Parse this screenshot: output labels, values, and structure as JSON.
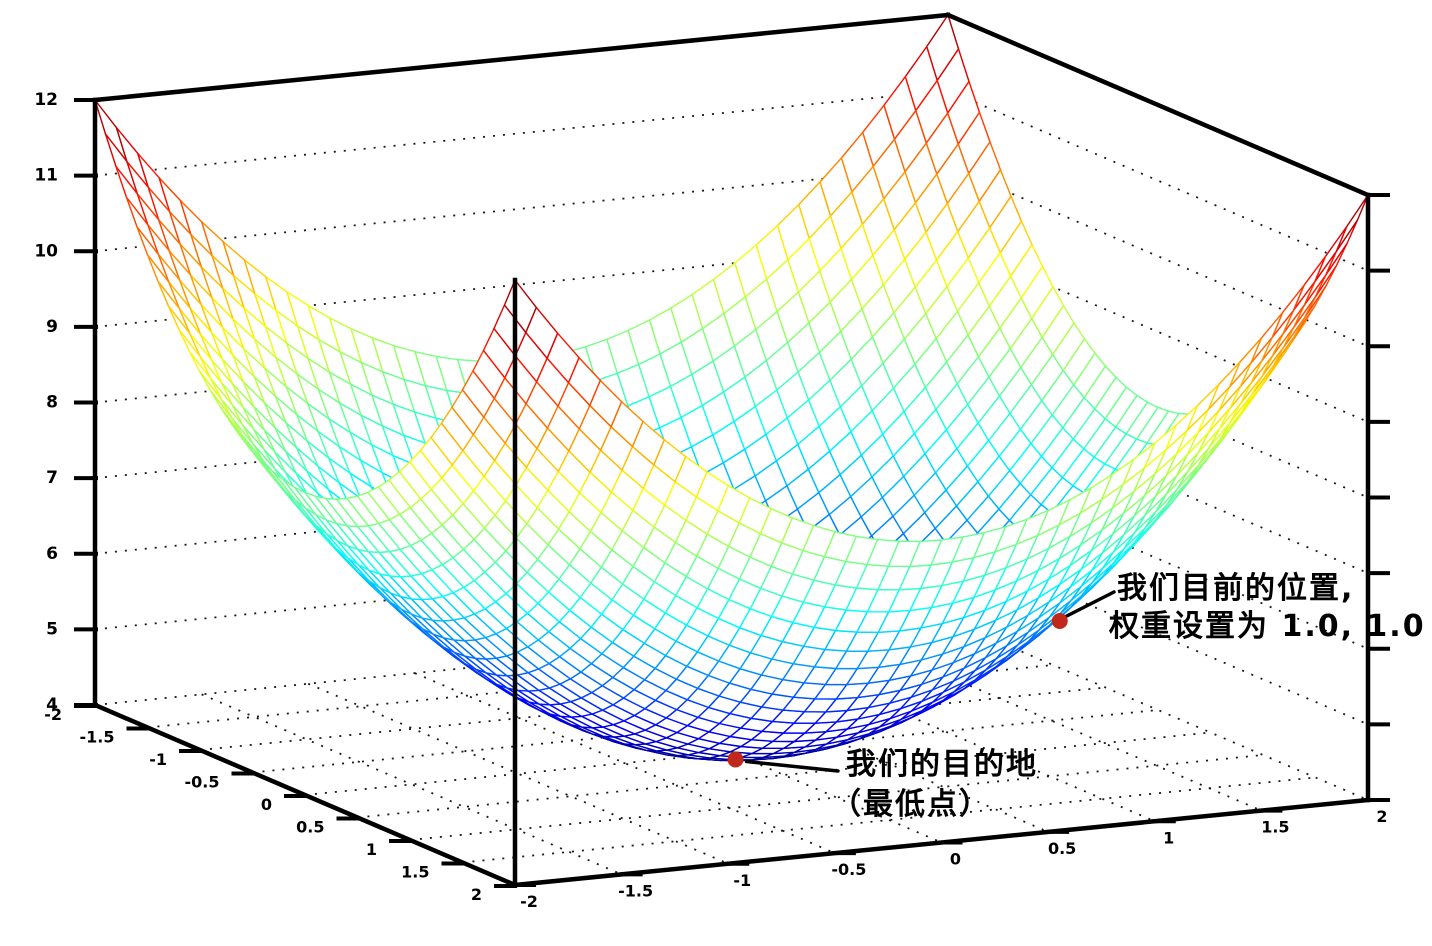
{
  "figure": {
    "background": "#ffffff"
  },
  "chart_data": {
    "type": "surface",
    "title": "",
    "function": "z = x^2 + y^2 + 4",
    "colormap": "jet",
    "wireframe_divisions": 40,
    "x_axis": {
      "range": [
        -2,
        2
      ],
      "ticks": [
        -2,
        -1.5,
        -1,
        -0.5,
        0,
        0.5,
        1,
        1.5,
        2
      ],
      "tick_labels": [
        "-2",
        "-1.5",
        "-1",
        "-0.5",
        "0",
        "0.5",
        "1",
        "1.5",
        "2"
      ]
    },
    "y_axis": {
      "range": [
        -2,
        2
      ],
      "ticks": [
        -2,
        -1.5,
        -1,
        -0.5,
        0,
        0.5,
        1,
        1.5,
        2
      ],
      "tick_labels": [
        "-2",
        "-1.5",
        "-1",
        "-0.5",
        "0",
        "0.5",
        "1",
        "1.5",
        "2"
      ]
    },
    "z_axis": {
      "range": [
        4,
        12
      ],
      "ticks": [
        4,
        5,
        6,
        7,
        8,
        9,
        10,
        11,
        12
      ],
      "tick_labels": [
        "4",
        "5",
        "6",
        "7",
        "8",
        "9",
        "10",
        "11",
        "12"
      ]
    },
    "grid": {
      "walls": true,
      "floor": true,
      "style": "dotted"
    },
    "marked_points": [
      {
        "id": "current-position",
        "x": 1.0,
        "y": 1.0,
        "z": 6.0,
        "color": "#c0281c"
      },
      {
        "id": "destination",
        "x": 0.0,
        "y": 0.0,
        "z": 4.0,
        "color": "#c0281c"
      }
    ]
  },
  "annotations": {
    "current_position": {
      "line1": "我们目前的位置,",
      "line2": "权重设置为 1.0, 1.0"
    },
    "destination": {
      "line1": "我们的目的地",
      "line2": "（最低点）"
    }
  },
  "colors": {
    "frame": "#000000",
    "grid": "#1a1a1a",
    "text": "#000000",
    "marker": "#c0281c"
  }
}
